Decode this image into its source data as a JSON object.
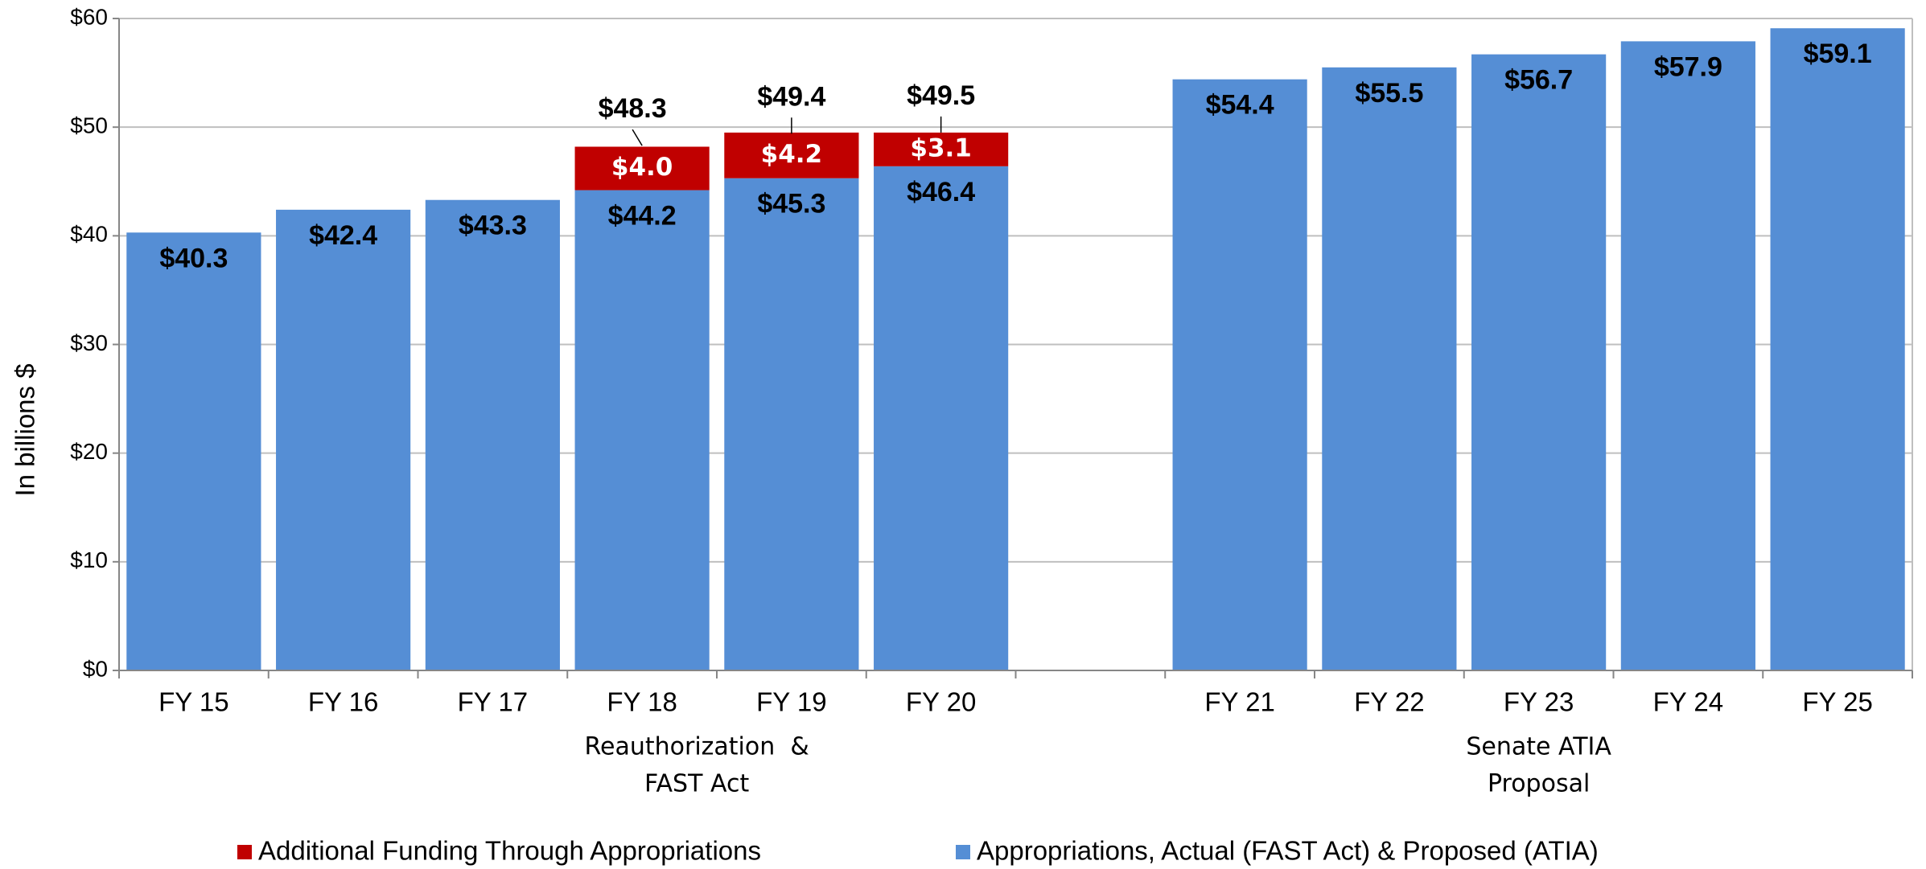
{
  "chart_data": {
    "type": "stacked_bar",
    "y_label": "In billions $",
    "categories": [
      "FY 15",
      "FY 16",
      "FY 17",
      "FY 18",
      "FY 19",
      "FY 20",
      null,
      "FY 21",
      "FY 22",
      "FY 23",
      "FY 24",
      "FY 25"
    ],
    "series": [
      {
        "name": "Additional Funding Through Appropriations",
        "color": "#c00000",
        "values": [
          null,
          null,
          null,
          4.0,
          4.2,
          3.1,
          null,
          null,
          null,
          null,
          null,
          null
        ],
        "value_labels": [
          null,
          null,
          null,
          "$4.0",
          "$4.2",
          "$3.1",
          null,
          null,
          null,
          null,
          null,
          null
        ]
      },
      {
        "name": "Appropriations, Actual (FAST Act) & Proposed (ATIA)",
        "color": "#558ed5",
        "values": [
          40.3,
          42.4,
          43.3,
          44.2,
          45.3,
          46.4,
          null,
          54.4,
          55.5,
          56.7,
          57.9,
          59.1
        ],
        "value_labels": [
          "$40.3",
          "$42.4",
          "$43.3",
          "$44.2",
          "$45.3",
          "$46.4",
          null,
          "$54.4",
          "$55.5",
          "$56.7",
          "$57.9",
          "$59.1"
        ]
      }
    ],
    "totals": [
      null,
      null,
      null,
      48.3,
      49.4,
      49.5,
      null,
      null,
      null,
      null,
      null,
      null
    ],
    "total_labels": [
      null,
      null,
      null,
      "$48.3",
      "$49.4",
      "$49.5",
      null,
      null,
      null,
      null,
      null,
      null
    ],
    "groups": [
      {
        "label_lines": [
          "Reauthorization  &",
          "FAST Act"
        ]
      },
      {
        "label_lines": [
          "Senate ATIA",
          "Proposal"
        ]
      }
    ],
    "ylim": [
      0,
      60
    ],
    "yticks": [
      {
        "value": 0,
        "label": "$0"
      },
      {
        "value": 10,
        "label": "$10"
      },
      {
        "value": 20,
        "label": "$20"
      },
      {
        "value": 30,
        "label": "$30"
      },
      {
        "value": 40,
        "label": "$40"
      },
      {
        "value": 50,
        "label": "$50"
      },
      {
        "value": 60,
        "label": "$60"
      }
    ],
    "grid": true,
    "legend": "bottom"
  }
}
